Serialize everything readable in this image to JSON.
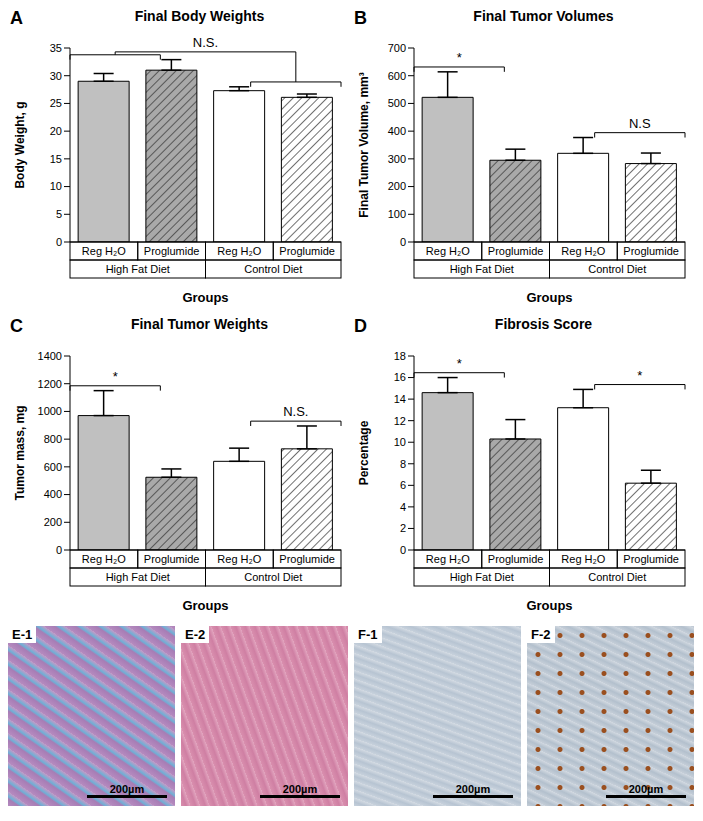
{
  "chart_data": [
    {
      "panel": "A",
      "type": "bar",
      "title": "Final Body Weights",
      "y_label": "Body Weight, g",
      "x_label": "Groups",
      "categories": [
        "Reg H₂O",
        "Proglumide",
        "Reg H₂O",
        "Proglumide"
      ],
      "groups": [
        {
          "label": "High Fat Diet",
          "span": 2
        },
        {
          "label": "Control Diet",
          "span": 2
        }
      ],
      "values": [
        29,
        31,
        27.3,
        26.1
      ],
      "errors": [
        1.4,
        1.9,
        0.7,
        0.6
      ],
      "colors": [
        "#c0c0c0",
        "#a9a9a9",
        "#ffffff",
        "#ffffff"
      ],
      "ylim": [
        0,
        35
      ],
      "yticks": [
        0,
        5,
        10,
        15,
        20,
        25,
        30,
        35
      ],
      "annotations": [
        {
          "text": "N.S.",
          "between": [
            [
              0,
              1
            ],
            [
              2,
              3
            ]
          ]
        }
      ]
    },
    {
      "panel": "B",
      "type": "bar",
      "title": "Final Tumor Volumes",
      "y_label": "Final Tumor Volume, mm³",
      "x_label": "Groups",
      "categories": [
        "Reg H₂O",
        "Proglumide",
        "Reg H₂O",
        "Proglumide"
      ],
      "groups": [
        {
          "label": "High Fat Diet",
          "span": 2
        },
        {
          "label": "Control Diet",
          "span": 2
        }
      ],
      "values": [
        522,
        295,
        320,
        283
      ],
      "errors": [
        92,
        40,
        57,
        38
      ],
      "colors": [
        "#c0c0c0",
        "#a9a9a9",
        "#ffffff",
        "#ffffff"
      ],
      "ylim": [
        0,
        700
      ],
      "yticks": [
        0,
        100,
        200,
        300,
        400,
        500,
        600,
        700
      ],
      "annotations": [
        {
          "text": "*",
          "between": [
            0,
            1
          ]
        },
        {
          "text": "N.S",
          "between": [
            2,
            3
          ]
        }
      ]
    },
    {
      "panel": "C",
      "type": "bar",
      "title": "Final Tumor Weights",
      "y_label": "Tumor mass, mg",
      "x_label": "Groups",
      "categories": [
        "Reg H₂O",
        "Proglumide",
        "Reg H₂O",
        "Proglumide"
      ],
      "groups": [
        {
          "label": "High Fat Diet",
          "span": 2
        },
        {
          "label": "Control Diet",
          "span": 2
        }
      ],
      "values": [
        970,
        525,
        640,
        730
      ],
      "errors": [
        180,
        60,
        95,
        165
      ],
      "colors": [
        "#c0c0c0",
        "#a9a9a9",
        "#ffffff",
        "#ffffff"
      ],
      "ylim": [
        0,
        1400
      ],
      "yticks": [
        0,
        200,
        400,
        600,
        800,
        1000,
        1200,
        1400
      ],
      "annotations": [
        {
          "text": "*",
          "between": [
            0,
            1
          ]
        },
        {
          "text": "N.S.",
          "between": [
            2,
            3
          ]
        }
      ]
    },
    {
      "panel": "D",
      "type": "bar",
      "title": "Fibrosis Score",
      "y_label": "Percentage",
      "x_label": "Groups",
      "categories": [
        "Reg H₂O",
        "Proglumide",
        "Reg H₂O",
        "Proglumide"
      ],
      "groups": [
        {
          "label": "High Fat Diet",
          "span": 2
        },
        {
          "label": "Control Diet",
          "span": 2
        }
      ],
      "values": [
        14.6,
        10.3,
        13.2,
        6.2
      ],
      "errors": [
        1.4,
        1.8,
        1.7,
        1.2
      ],
      "colors": [
        "#c0c0c0",
        "#a9a9a9",
        "#ffffff",
        "#ffffff"
      ],
      "ylim": [
        0,
        18
      ],
      "yticks": [
        0,
        2,
        4,
        6,
        8,
        10,
        12,
        14,
        16,
        18
      ],
      "annotations": [
        {
          "text": "*",
          "between": [
            0,
            1
          ]
        },
        {
          "text": "*",
          "between": [
            2,
            3
          ]
        }
      ]
    }
  ],
  "images": [
    {
      "label": "E-1",
      "scale_bar": "200µm"
    },
    {
      "label": "E-2",
      "scale_bar": "200µm"
    },
    {
      "label": "F-1",
      "scale_bar": "200µm"
    },
    {
      "label": "F-2",
      "scale_bar": "200µm"
    }
  ]
}
